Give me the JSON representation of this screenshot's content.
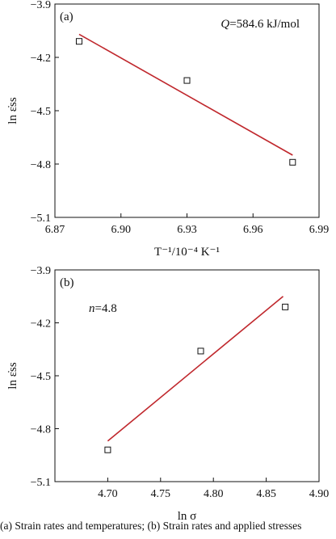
{
  "chart_data": [
    {
      "type": "scatter",
      "panel_label": "(a)",
      "annotation": "Q=584.6 kJ/mol",
      "xlabel": "T⁻¹/10⁻⁴ K⁻¹",
      "ylabel": "ln ε̇ss",
      "xlim": [
        6.87,
        6.99
      ],
      "ylim": [
        -5.1,
        -3.9
      ],
      "xticks": [
        "6.87",
        "6.90",
        "6.93",
        "6.96",
        "6.99"
      ],
      "yticks": [
        "-3.9",
        "-4.2",
        "-4.5",
        "-4.8",
        "-5.1"
      ],
      "points": [
        {
          "x": 6.881,
          "y": -4.11
        },
        {
          "x": 6.93,
          "y": -4.33
        },
        {
          "x": 6.978,
          "y": -4.79
        }
      ],
      "fit_line": {
        "x": [
          6.881,
          6.978
        ],
        "y": [
          -4.07,
          -4.75
        ],
        "color": "#c0282d"
      }
    },
    {
      "type": "scatter",
      "panel_label": "(b)",
      "annotation": "n=4.8",
      "xlabel": "ln σ",
      "ylabel": "ln ε̇ss",
      "xlim": [
        4.65,
        4.9
      ],
      "ylim": [
        -5.1,
        -3.9
      ],
      "xticks": [
        "4.70",
        "4.75",
        "4.80",
        "4.85",
        "4.90"
      ],
      "yticks": [
        "-3.9",
        "-4.2",
        "-4.5",
        "-4.8",
        "-5.1"
      ],
      "points": [
        {
          "x": 4.7,
          "y": -4.92
        },
        {
          "x": 4.788,
          "y": -4.36
        },
        {
          "x": 4.868,
          "y": -4.11
        }
      ],
      "fit_line": {
        "x": [
          4.7,
          4.866
        ],
        "y": [
          -4.87,
          -4.05
        ],
        "color": "#c0282d"
      }
    }
  ],
  "caption": "(a)  Strain rates and temperatures; (b) Strain rates and applied stresses"
}
